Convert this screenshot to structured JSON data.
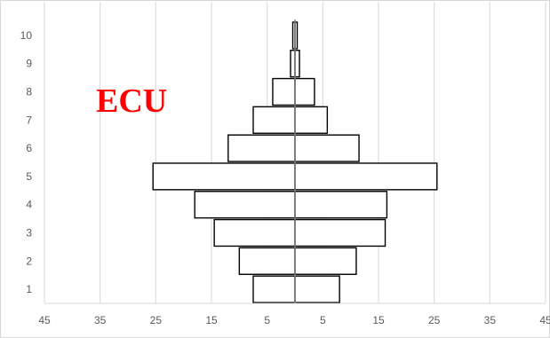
{
  "chart_data": {
    "type": "bar",
    "orientation": "horizontal",
    "style": "population-pyramid",
    "overlay_label": "ECU",
    "categories": [
      "1",
      "2",
      "3",
      "4",
      "5",
      "6",
      "7",
      "8",
      "9",
      "10"
    ],
    "series": [
      {
        "side": "left",
        "values": [
          7.5,
          10,
          14.5,
          18,
          25.5,
          12,
          7.5,
          4,
          0.8,
          0.4
        ]
      },
      {
        "side": "right",
        "values": [
          8,
          11,
          16.2,
          16.5,
          25.5,
          11.5,
          5.8,
          3.5,
          0.8,
          0.4
        ]
      }
    ],
    "xlim": [
      -45,
      45
    ],
    "x_tick_labels": [
      "45",
      "35",
      "25",
      "15",
      "5",
      "5",
      "15",
      "25",
      "35",
      "45"
    ],
    "x_ticks": [
      -45,
      -35,
      -25,
      -15,
      -5,
      5,
      15,
      25,
      35,
      45
    ],
    "grid": true,
    "legend": "none",
    "colors": {
      "bar_fill": "#ffffff",
      "bar_stroke": "#000000",
      "grid": "#d9d9d9",
      "center_line": "#808080",
      "overlay": "#ff0000"
    }
  }
}
